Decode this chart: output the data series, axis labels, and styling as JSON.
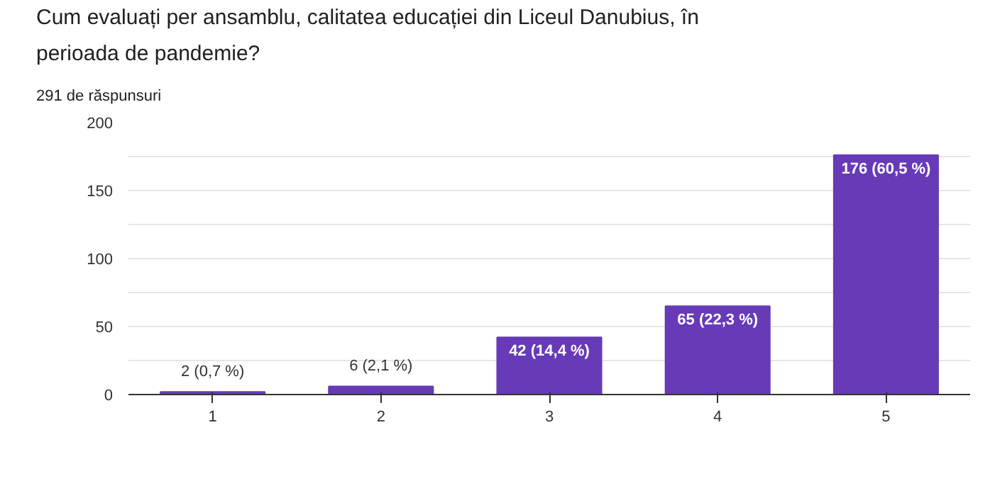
{
  "chart_data": {
    "type": "bar",
    "title": "Cum evaluați per ansamblu, calitatea educației din Liceul Danubius, în perioada de pandemie?",
    "subtitle": "291 de răspunsuri",
    "categories": [
      "1",
      "2",
      "3",
      "4",
      "5"
    ],
    "values": [
      2,
      6,
      42,
      65,
      176
    ],
    "value_labels": [
      "2 (0,7 %)",
      "6 (2,1 %)",
      "42 (14,4 %)",
      "65 (22,3 %)",
      "176 (60,5 %)"
    ],
    "color": "#673ab7",
    "ylim": [
      0,
      200
    ],
    "yticks": [
      0,
      {
        "value": 25,
        "label": null
      },
      50,
      {
        "value": 75,
        "label": null
      },
      100,
      {
        "value": 125,
        "label": null
      },
      150,
      {
        "value": 175,
        "label": null
      },
      200
    ],
    "grid": "y"
  }
}
